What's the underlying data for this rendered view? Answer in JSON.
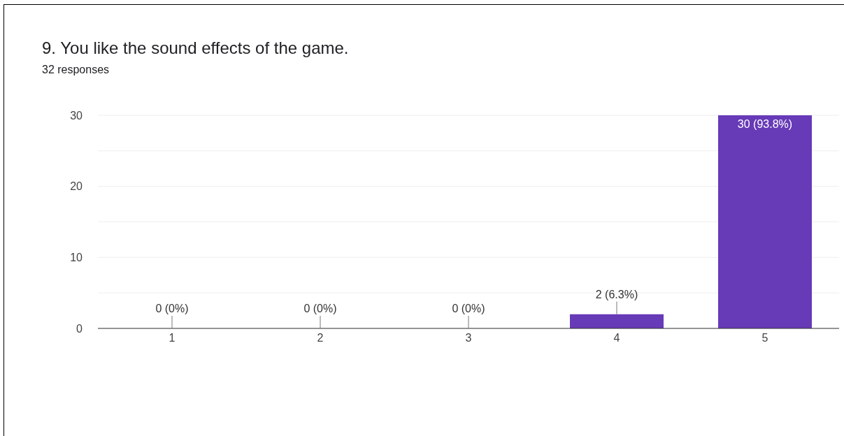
{
  "chart_data": {
    "type": "bar",
    "title": "9. You like the sound effects of the game.",
    "subtitle": "32 responses",
    "categories": [
      "1",
      "2",
      "3",
      "4",
      "5"
    ],
    "values": [
      0,
      0,
      0,
      2,
      30
    ],
    "value_labels": [
      "0 (0%)",
      "0 (0%)",
      "0 (0%)",
      "2 (6.3%)",
      "30 (93.8%)"
    ],
    "color": "#673ab7",
    "ylim": [
      0,
      30
    ],
    "yticks": [
      0,
      {
        "value": 5,
        "label": null
      },
      10,
      {
        "value": 15,
        "label": null
      },
      20,
      {
        "value": 25,
        "label": null
      },
      30
    ],
    "grid": "y"
  }
}
